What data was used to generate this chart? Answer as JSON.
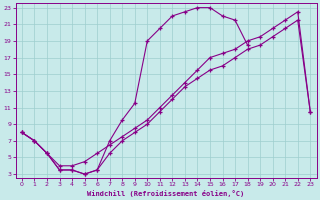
{
  "xlabel": "Windchill (Refroidissement éolien,°C)",
  "bg_color": "#c8eaea",
  "line_color": "#880088",
  "grid_color": "#9ecece",
  "xlim": [
    -0.5,
    23.5
  ],
  "ylim": [
    2.5,
    23.5
  ],
  "xticks": [
    0,
    1,
    2,
    3,
    4,
    5,
    6,
    7,
    8,
    9,
    10,
    11,
    12,
    13,
    14,
    15,
    16,
    17,
    18,
    19,
    20,
    21,
    22,
    23
  ],
  "yticks": [
    3,
    5,
    7,
    9,
    11,
    13,
    15,
    17,
    19,
    21,
    23
  ],
  "line1_x": [
    0,
    1,
    2,
    3,
    4,
    5,
    6,
    7,
    8,
    9,
    10,
    11,
    12,
    13,
    14,
    15,
    16,
    17,
    18
  ],
  "line1_y": [
    8.0,
    7.0,
    5.5,
    3.5,
    3.5,
    3.0,
    3.5,
    7.0,
    9.5,
    11.5,
    19.0,
    20.5,
    22.0,
    22.5,
    23.0,
    23.0,
    22.0,
    21.5,
    18.5
  ],
  "line2_x": [
    0,
    1,
    2,
    3,
    4,
    5,
    6,
    7,
    8,
    9,
    10,
    11,
    12,
    13,
    14,
    15,
    16,
    17,
    18,
    19,
    20,
    21,
    22,
    23
  ],
  "line2_y": [
    8.0,
    7.0,
    5.5,
    4.0,
    4.0,
    4.5,
    5.5,
    6.5,
    7.5,
    8.5,
    9.5,
    11.0,
    12.5,
    14.0,
    15.5,
    17.0,
    17.5,
    18.0,
    19.0,
    19.5,
    20.5,
    21.5,
    22.5,
    10.5
  ],
  "line3_x": [
    0,
    1,
    2,
    3,
    4,
    5,
    6,
    7,
    8,
    9,
    10,
    11,
    12,
    13,
    14,
    15,
    16,
    17,
    18,
    19,
    20,
    21,
    22,
    23
  ],
  "line3_y": [
    8.0,
    7.0,
    5.5,
    3.5,
    3.5,
    3.0,
    3.5,
    5.5,
    7.0,
    8.0,
    9.0,
    10.5,
    12.0,
    13.5,
    14.5,
    15.5,
    16.0,
    17.0,
    18.0,
    18.5,
    19.5,
    20.5,
    21.5,
    10.5
  ]
}
